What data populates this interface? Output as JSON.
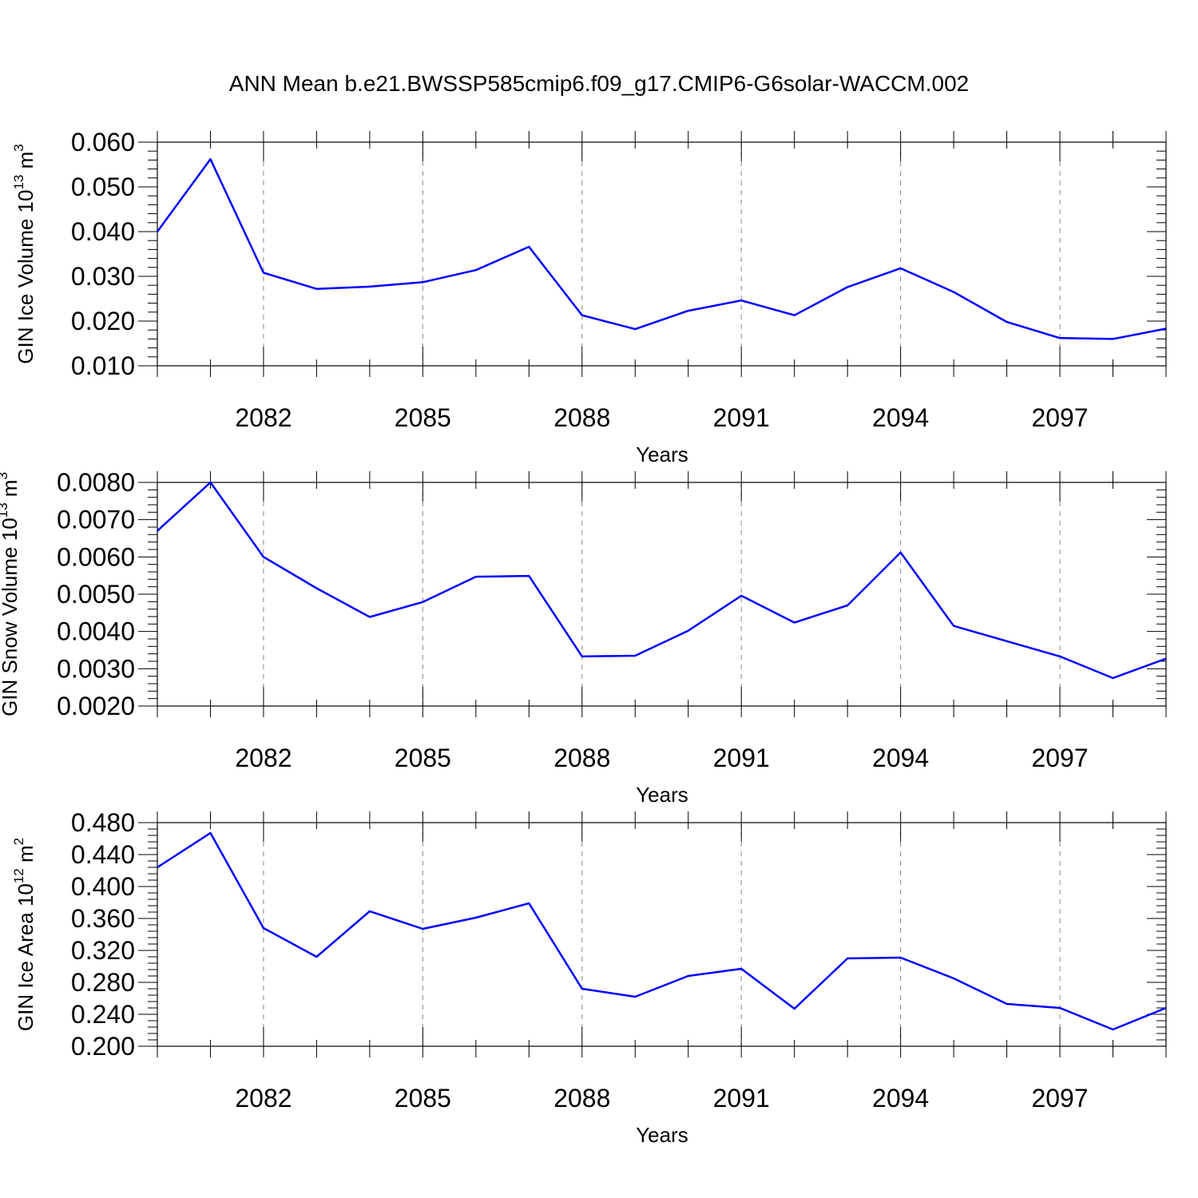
{
  "title": "ANN Mean b.e21.BWSSP585cmip6.f09_g17.CMIP6-G6solar-WACCM.002",
  "colors": {
    "line": "#0000ff",
    "axis": "#000000",
    "grid": "#888888"
  },
  "chart_data": [
    {
      "type": "line",
      "ylabel_main": "GIN Ice Volume 10",
      "ylabel_exp": "13",
      "ylabel_unit": " m",
      "ylabel_unit_exp": "3",
      "xlabel": "Years",
      "xlim": [
        2080,
        2099
      ],
      "ylim": [
        0.01,
        0.06
      ],
      "x_ticks": [
        "2082",
        "2085",
        "2088",
        "2091",
        "2094",
        "2097"
      ],
      "y_ticks": [
        "0.010",
        "0.020",
        "0.030",
        "0.040",
        "0.050",
        "0.060"
      ],
      "grid": "vertical dashed at major x ticks",
      "series": [
        {
          "x": [
            2080,
            2081,
            2082,
            2083,
            2084,
            2085,
            2086,
            2087,
            2088,
            2089,
            2090,
            2091,
            2092,
            2093,
            2094,
            2095,
            2096,
            2097,
            2098,
            2099
          ],
          "y": [
            0.04,
            0.0562,
            0.0308,
            0.0272,
            0.0277,
            0.0287,
            0.0314,
            0.0366,
            0.0213,
            0.0182,
            0.0223,
            0.0246,
            0.0213,
            0.0276,
            0.0318,
            0.0265,
            0.0198,
            0.0162,
            0.016,
            0.0183
          ]
        }
      ]
    },
    {
      "type": "line",
      "ylabel_main": "GIN Snow Volume 10",
      "ylabel_exp": "13",
      "ylabel_unit": " m",
      "ylabel_unit_exp": "3",
      "xlabel": "Years",
      "xlim": [
        2080,
        2099
      ],
      "ylim": [
        0.002,
        0.008
      ],
      "x_ticks": [
        "2082",
        "2085",
        "2088",
        "2091",
        "2094",
        "2097"
      ],
      "y_ticks": [
        "0.0020",
        "0.0030",
        "0.0040",
        "0.0050",
        "0.0060",
        "0.0070",
        "0.0080"
      ],
      "grid": "vertical dashed at major x ticks",
      "series": [
        {
          "x": [
            2080,
            2081,
            2082,
            2083,
            2084,
            2085,
            2086,
            2087,
            2088,
            2089,
            2090,
            2091,
            2092,
            2093,
            2094,
            2095,
            2096,
            2097,
            2098,
            2099
          ],
          "y": [
            0.0067,
            0.008,
            0.006,
            0.00516,
            0.00439,
            0.00479,
            0.00547,
            0.00549,
            0.00333,
            0.00335,
            0.00402,
            0.00496,
            0.00424,
            0.0047,
            0.00612,
            0.00415,
            0.00374,
            0.00333,
            0.00275,
            0.00327
          ]
        }
      ]
    },
    {
      "type": "line",
      "ylabel_main": "GIN Ice Area 10",
      "ylabel_exp": "12",
      "ylabel_unit": " m",
      "ylabel_unit_exp": "2",
      "xlabel": "Years",
      "xlim": [
        2080,
        2099
      ],
      "ylim": [
        0.2,
        0.48
      ],
      "x_ticks": [
        "2082",
        "2085",
        "2088",
        "2091",
        "2094",
        "2097"
      ],
      "y_ticks": [
        "0.200",
        "0.240",
        "0.280",
        "0.320",
        "0.360",
        "0.400",
        "0.440",
        "0.480"
      ],
      "grid": "vertical dashed at major x ticks",
      "series": [
        {
          "x": [
            2080,
            2081,
            2082,
            2083,
            2084,
            2085,
            2086,
            2087,
            2088,
            2089,
            2090,
            2091,
            2092,
            2093,
            2094,
            2095,
            2096,
            2097,
            2098,
            2099
          ],
          "y": [
            0.424,
            0.467,
            0.348,
            0.312,
            0.369,
            0.347,
            0.361,
            0.379,
            0.272,
            0.262,
            0.288,
            0.297,
            0.247,
            0.31,
            0.311,
            0.285,
            0.253,
            0.248,
            0.221,
            0.248
          ]
        }
      ]
    }
  ]
}
